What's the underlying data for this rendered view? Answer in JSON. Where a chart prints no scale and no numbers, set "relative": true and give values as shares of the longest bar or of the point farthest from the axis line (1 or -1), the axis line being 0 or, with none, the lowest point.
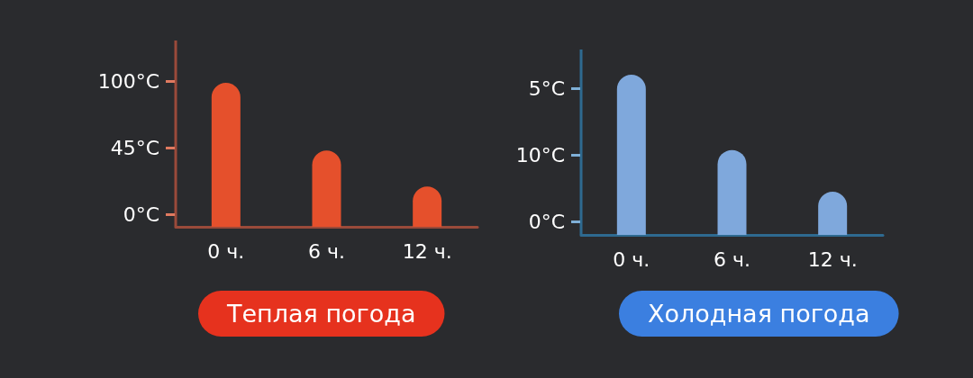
{
  "chart_data": [
    {
      "type": "bar",
      "title": "Теплая погода",
      "categories": [
        "0 ч.",
        "6 ч.",
        "12 ч."
      ],
      "relative": true,
      "series": [
        {
          "color": "#e5502c",
          "values": [
            1,
            0.53,
            0.28
          ]
        }
      ],
      "annotations": [
        "100°C",
        "45°C",
        "0°C"
      ],
      "grid": false
    },
    {
      "type": "bar",
      "title": "Холодная погода",
      "categories": [
        "0 ч.",
        "6 ч.",
        "12 ч."
      ],
      "relative": true,
      "series": [
        {
          "color": "#7fa8dc",
          "values": [
            1,
            0.53,
            0.27
          ]
        }
      ],
      "annotations": [
        "5°C",
        "10°C",
        "0°C"
      ],
      "grid": false
    }
  ]
}
